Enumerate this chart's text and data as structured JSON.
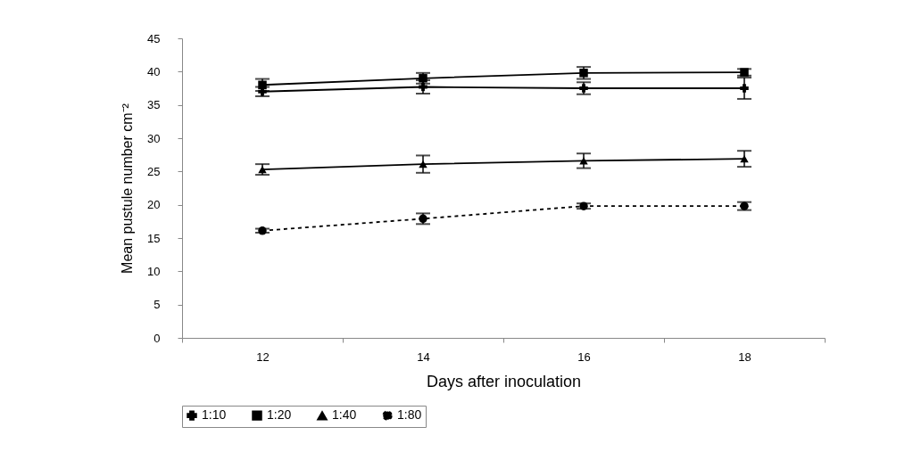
{
  "chart_data": {
    "type": "line",
    "xlabel": "Days after inoculation",
    "ylabel": "Mean pustule number cm⁻²",
    "categories": [
      "12",
      "14",
      "16",
      "18"
    ],
    "ylim": [
      0,
      45
    ],
    "yticks": [
      0,
      5,
      10,
      15,
      20,
      25,
      30,
      35,
      40,
      45
    ],
    "grid": false,
    "legend": "bottom",
    "series": [
      {
        "name": "1:10",
        "color": "#000000",
        "marker": "cross",
        "line_style": "solid",
        "values": [
          37,
          37.7,
          37.5,
          37.5
        ],
        "errors": [
          0.7,
          1,
          0.9,
          1.6
        ]
      },
      {
        "name": "1:20",
        "color": "#000000",
        "marker": "square",
        "line_style": "solid",
        "values": [
          38,
          39,
          39.8,
          39.9
        ],
        "errors": [
          0.9,
          0.8,
          0.9,
          0.5
        ]
      },
      {
        "name": "1:40",
        "color": "#000000",
        "marker": "triangle",
        "line_style": "solid",
        "values": [
          25.3,
          26.1,
          26.6,
          26.9
        ],
        "errors": [
          0.8,
          1.3,
          1.1,
          1.2
        ]
      },
      {
        "name": "1:80",
        "color": "#000000",
        "marker": "circle",
        "line_style": "dashed",
        "values": [
          16.1,
          17.9,
          19.8,
          19.8
        ],
        "errors": [
          0.3,
          0.8,
          0.4,
          0.6
        ]
      }
    ]
  }
}
